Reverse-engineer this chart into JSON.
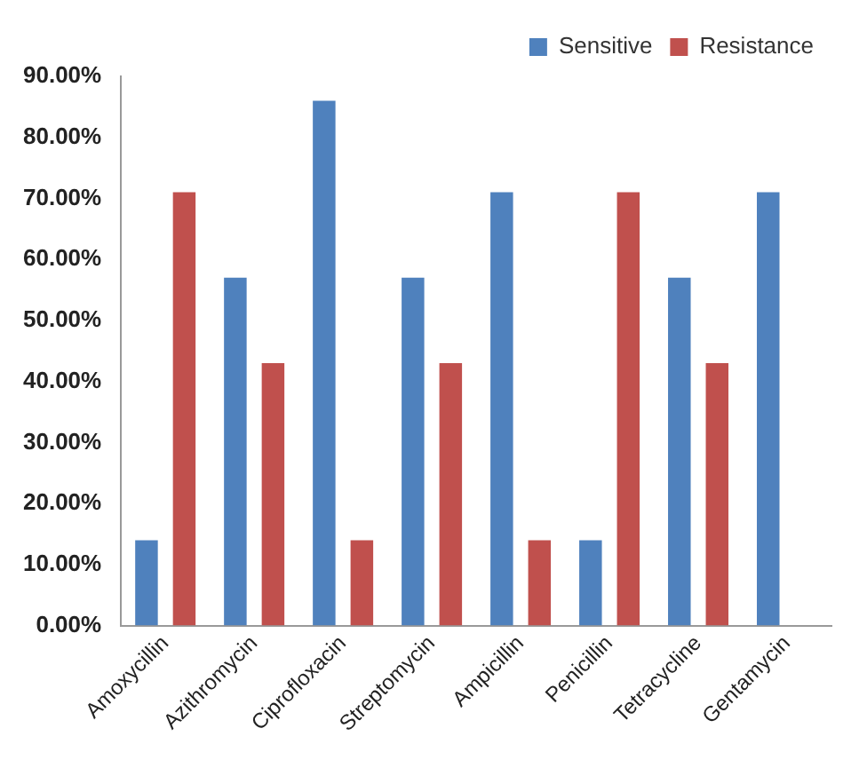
{
  "chart_data": {
    "type": "bar",
    "categories": [
      "Amoxycillin",
      "Azithromycin",
      "Ciprofloxacin",
      "Streptomycin",
      "Ampicillin",
      "Penicillin",
      "Tetracycline",
      "Gentamycin"
    ],
    "series": [
      {
        "name": "Sensitive",
        "color": "#4f81bd",
        "values": [
          14,
          57,
          86,
          57,
          71,
          14,
          57,
          71
        ]
      },
      {
        "name": "Resistance",
        "color": "#c0504d",
        "values": [
          71,
          43,
          14,
          43,
          14,
          71,
          43,
          0
        ]
      }
    ],
    "ylim": [
      0,
      90
    ],
    "yticks": [
      {
        "value": 0,
        "label": "0.00%"
      },
      {
        "value": 10,
        "label": "10.00%"
      },
      {
        "value": 20,
        "label": "20.00%"
      },
      {
        "value": 30,
        "label": "30.00%"
      },
      {
        "value": 40,
        "label": "40.00%"
      },
      {
        "value": 50,
        "label": "50.00%"
      },
      {
        "value": 60,
        "label": "60.00%"
      },
      {
        "value": 70,
        "label": "70.00%"
      },
      {
        "value": 80,
        "label": "80.00%"
      },
      {
        "value": 90,
        "label": "90.00%"
      }
    ],
    "grid": false,
    "legend": "top right"
  }
}
